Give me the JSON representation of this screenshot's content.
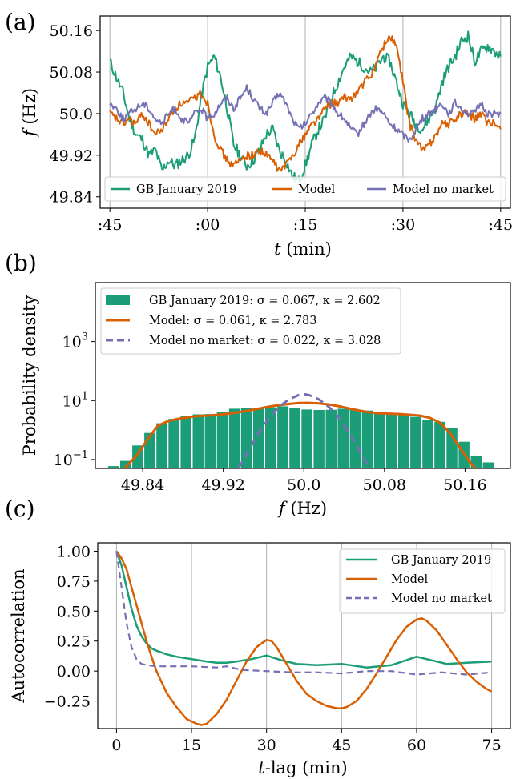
{
  "colors": {
    "gb": "#1b9e77",
    "model": "#d95f02",
    "no_market": "#7570b3",
    "grid": "#b0b0b0"
  },
  "chart_data": [
    {
      "panel": "(a)",
      "type": "line",
      "xlabel": "t (min)",
      "ylabel": "f (Hz)",
      "x_tick_labels": [
        ":45",
        ":00",
        ":15",
        ":30",
        ":45"
      ],
      "x_tick_values": [
        0,
        15,
        30,
        45,
        60
      ],
      "xlim": [
        -1.5,
        61.5
      ],
      "y_tick_labels": [
        "49.84",
        "49.92",
        "50.0",
        "50.08",
        "50.16"
      ],
      "y_tick_values": [
        49.84,
        49.92,
        50.0,
        50.08,
        50.16
      ],
      "ylim": [
        49.818,
        50.188
      ],
      "grid": "vertical",
      "legend_position": "bottom",
      "series": [
        {
          "name": "GB January 2019",
          "color": "gb",
          "x": [
            0,
            1,
            2,
            3,
            4,
            5,
            6,
            7,
            8,
            9,
            10,
            11,
            12,
            13,
            14,
            15,
            16,
            17,
            18,
            19,
            20,
            21,
            22,
            23,
            24,
            25,
            26,
            27,
            28,
            29,
            30,
            31,
            32,
            33,
            34,
            35,
            36,
            37,
            38,
            39,
            40,
            41,
            42,
            43,
            44,
            45,
            46,
            47,
            48,
            49,
            50,
            51,
            52,
            53,
            54,
            55,
            56,
            57,
            58,
            59,
            60
          ],
          "y": [
            50.1,
            50.07,
            50.04,
            49.99,
            49.96,
            49.95,
            49.92,
            49.93,
            49.89,
            49.91,
            49.9,
            49.91,
            49.92,
            49.95,
            50.03,
            50.09,
            50.11,
            50.07,
            50.01,
            49.94,
            49.92,
            49.9,
            49.91,
            49.93,
            49.96,
            49.97,
            49.93,
            49.91,
            49.88,
            49.87,
            49.9,
            49.94,
            49.97,
            49.99,
            50.03,
            50.06,
            50.09,
            50.11,
            50.1,
            50.09,
            50.08,
            50.09,
            50.11,
            50.1,
            50.06,
            50.02,
            50.0,
            49.98,
            49.97,
            49.99,
            50.01,
            50.06,
            50.09,
            50.11,
            50.14,
            50.15,
            50.1,
            50.12,
            50.13,
            50.12,
            50.11
          ]
        },
        {
          "name": "Model",
          "color": "model",
          "x": [
            0,
            1,
            2,
            3,
            4,
            5,
            6,
            7,
            8,
            9,
            10,
            11,
            12,
            13,
            14,
            15,
            16,
            17,
            18,
            19,
            20,
            21,
            22,
            23,
            24,
            25,
            26,
            27,
            28,
            29,
            30,
            31,
            32,
            33,
            34,
            35,
            36,
            37,
            38,
            39,
            40,
            41,
            42,
            43,
            44,
            45,
            46,
            47,
            48,
            49,
            50,
            51,
            52,
            53,
            54,
            55,
            56,
            57,
            58,
            59,
            60
          ],
          "y": [
            50.0,
            49.99,
            49.98,
            49.99,
            49.98,
            50.0,
            49.98,
            49.96,
            49.97,
            49.99,
            50.01,
            50.02,
            50.02,
            50.03,
            50.04,
            50.02,
            49.96,
            49.93,
            49.91,
            49.9,
            49.91,
            49.92,
            49.92,
            49.93,
            49.92,
            49.91,
            49.89,
            49.9,
            49.92,
            49.94,
            49.96,
            49.98,
            49.99,
            50.01,
            50.02,
            50.02,
            50.03,
            50.03,
            50.04,
            50.06,
            50.07,
            50.1,
            50.13,
            50.15,
            50.13,
            50.06,
            49.98,
            49.95,
            49.93,
            49.94,
            49.96,
            49.98,
            49.98,
            49.99,
            50.0,
            50.0,
            49.99,
            50.0,
            49.98,
            49.98,
            49.97
          ]
        },
        {
          "name": "Model no market",
          "color": "no_market",
          "x": [
            0,
            1,
            2,
            3,
            4,
            5,
            6,
            7,
            8,
            9,
            10,
            11,
            12,
            13,
            14,
            15,
            16,
            17,
            18,
            19,
            20,
            21,
            22,
            23,
            24,
            25,
            26,
            27,
            28,
            29,
            30,
            31,
            32,
            33,
            34,
            35,
            36,
            37,
            38,
            39,
            40,
            41,
            42,
            43,
            44,
            45,
            46,
            47,
            48,
            49,
            50,
            51,
            52,
            53,
            54,
            55,
            56,
            57,
            58,
            59,
            60
          ],
          "y": [
            50.02,
            50.01,
            49.99,
            50.0,
            50.01,
            50.02,
            50.01,
            49.99,
            49.98,
            50.0,
            50.01,
            49.99,
            49.98,
            50.0,
            50.01,
            49.99,
            50.0,
            50.02,
            50.03,
            50.01,
            50.03,
            50.05,
            50.03,
            50.01,
            50.0,
            50.02,
            50.04,
            50.02,
            49.99,
            49.97,
            49.98,
            50.0,
            50.02,
            50.03,
            50.02,
            50.0,
            49.99,
            49.97,
            49.96,
            49.98,
            50.0,
            50.01,
            50.0,
            49.98,
            49.97,
            49.96,
            49.95,
            49.97,
            49.99,
            50.0,
            50.01,
            50.02,
            50.0,
            50.02,
            50.01,
            50.0,
            50.0,
            50.02,
            50.0,
            50.0,
            50.0
          ]
        }
      ]
    },
    {
      "panel": "(b)",
      "type": "bar",
      "xlabel": "f (Hz)",
      "ylabel": "Probability density",
      "x_tick_labels": [
        "49.84",
        "49.92",
        "50.0",
        "50.08",
        "50.16"
      ],
      "x_tick_values": [
        49.84,
        49.92,
        50.0,
        50.08,
        50.16
      ],
      "xlim": [
        49.793,
        50.205
      ],
      "y_scale": "log",
      "y_tick_labels": [
        "10",
        "10",
        "10"
      ],
      "y_tick_exponents": [
        "−1",
        "1",
        "3"
      ],
      "y_tick_values": [
        0.1,
        10,
        1000
      ],
      "ylim": [
        0.05,
        100000
      ],
      "legend_position": "top-left",
      "histogram": {
        "name": "GB January 2019: σ = 0.067, κ = 2.602",
        "color": "gb",
        "bin_edges": [
          49.805,
          49.817,
          49.829,
          49.841,
          49.853,
          49.865,
          49.877,
          49.889,
          49.901,
          49.913,
          49.925,
          49.937,
          49.949,
          49.961,
          49.973,
          49.985,
          49.997,
          50.009,
          50.021,
          50.033,
          50.045,
          50.057,
          50.069,
          50.081,
          50.093,
          50.105,
          50.117,
          50.129,
          50.141,
          50.153,
          50.165,
          50.177,
          50.189
        ],
        "values": [
          0.06,
          0.09,
          0.3,
          0.8,
          1.7,
          2.4,
          3.0,
          3.4,
          3.5,
          4.0,
          5.3,
          5.6,
          5.6,
          5.9,
          6.4,
          5.7,
          5.0,
          4.8,
          4.9,
          5.3,
          5.0,
          4.6,
          4.1,
          3.5,
          3.3,
          2.8,
          2.2,
          1.9,
          1.2,
          0.4,
          0.13,
          0.08
        ]
      },
      "series": [
        {
          "name": "Model: σ = 0.061, κ = 2.783",
          "color": "model",
          "dash": "solid",
          "x": [
            49.822,
            49.835,
            49.845,
            49.855,
            49.865,
            49.875,
            49.885,
            49.895,
            49.905,
            49.915,
            49.925,
            49.935,
            49.945,
            49.955,
            49.965,
            49.975,
            49.985,
            49.995,
            50.005,
            50.015,
            50.025,
            50.035,
            50.045,
            50.055,
            50.065,
            50.075,
            50.085,
            50.095,
            50.105,
            50.115,
            50.125,
            50.135,
            50.145,
            50.155,
            50.165,
            50.17
          ],
          "y": [
            0.05,
            0.15,
            0.5,
            1.4,
            2.0,
            2.4,
            2.7,
            3.0,
            3.1,
            3.3,
            3.6,
            4.0,
            4.6,
            5.3,
            6.2,
            7.0,
            7.7,
            8.3,
            8.4,
            8.0,
            7.4,
            6.4,
            5.4,
            4.6,
            4.0,
            3.7,
            3.6,
            3.5,
            3.3,
            3.1,
            2.6,
            1.8,
            0.8,
            0.25,
            0.08,
            0.05
          ]
        },
        {
          "name": "Model no market: σ = 0.022, κ = 3.028",
          "color": "no_market",
          "dash": "dashed",
          "x": [
            49.935,
            49.945,
            49.955,
            49.965,
            49.975,
            49.985,
            49.995,
            50.0,
            50.005,
            50.015,
            50.025,
            50.035,
            50.045,
            50.055,
            50.065
          ],
          "y": [
            0.05,
            0.2,
            0.8,
            2.5,
            6.0,
            11.0,
            15.5,
            16.5,
            15.5,
            11.0,
            6.0,
            2.5,
            0.8,
            0.2,
            0.05
          ]
        }
      ]
    },
    {
      "panel": "(c)",
      "type": "line",
      "xlabel": "t-lag (min)",
      "ylabel": "Autocorrelation",
      "x_tick_labels": [
        "0",
        "15",
        "30",
        "45",
        "60",
        "75"
      ],
      "x_tick_values": [
        0,
        15,
        30,
        45,
        60,
        75
      ],
      "xlim": [
        -3.75,
        78.75
      ],
      "y_tick_labels": [
        "−0.25",
        "0.00",
        "0.25",
        "0.50",
        "0.75",
        "1.00"
      ],
      "y_tick_values": [
        -0.25,
        0.0,
        0.25,
        0.5,
        0.75,
        1.0
      ],
      "ylim": [
        -0.48,
        1.07
      ],
      "grid": "vertical",
      "legend_position": "top-right",
      "series": [
        {
          "name": "GB January 2019",
          "color": "gb",
          "dash": "solid",
          "x": [
            0,
            1,
            2,
            3,
            4,
            5,
            6,
            7,
            8,
            10,
            12,
            15,
            18,
            20,
            22,
            24,
            27,
            30,
            33,
            36,
            40,
            45,
            50,
            55,
            60,
            63,
            66,
            70,
            75
          ],
          "y": [
            1.0,
            0.88,
            0.7,
            0.52,
            0.38,
            0.29,
            0.23,
            0.19,
            0.17,
            0.14,
            0.12,
            0.1,
            0.08,
            0.07,
            0.07,
            0.08,
            0.1,
            0.13,
            0.09,
            0.06,
            0.05,
            0.06,
            0.03,
            0.05,
            0.12,
            0.09,
            0.06,
            0.07,
            0.08
          ]
        },
        {
          "name": "Model",
          "color": "model",
          "dash": "solid",
          "x": [
            0,
            1,
            2,
            3,
            4,
            5,
            6,
            7,
            8,
            10,
            12,
            14,
            16,
            17,
            18,
            20,
            22,
            24,
            26,
            28,
            30,
            31,
            32,
            34,
            36,
            38,
            40,
            42,
            44,
            45,
            46,
            48,
            50,
            52,
            54,
            56,
            58,
            60,
            61,
            62,
            64,
            66,
            68,
            70,
            72,
            74,
            75
          ],
          "y": [
            1.0,
            0.94,
            0.85,
            0.7,
            0.55,
            0.4,
            0.25,
            0.12,
            0.0,
            -0.18,
            -0.3,
            -0.4,
            -0.44,
            -0.45,
            -0.44,
            -0.36,
            -0.24,
            -0.08,
            0.08,
            0.2,
            0.26,
            0.25,
            0.2,
            0.06,
            -0.08,
            -0.19,
            -0.25,
            -0.29,
            -0.31,
            -0.31,
            -0.3,
            -0.25,
            -0.15,
            -0.02,
            0.12,
            0.26,
            0.37,
            0.43,
            0.44,
            0.42,
            0.34,
            0.22,
            0.1,
            -0.01,
            -0.09,
            -0.15,
            -0.17
          ]
        },
        {
          "name": "Model no market",
          "color": "no_market",
          "dash": "dashed",
          "x": [
            0,
            1,
            2,
            3,
            4,
            5,
            6,
            8,
            10,
            15,
            20,
            22,
            25,
            30,
            35,
            40,
            45,
            50,
            55,
            60,
            65,
            70,
            75
          ],
          "y": [
            1.0,
            0.7,
            0.4,
            0.2,
            0.1,
            0.06,
            0.05,
            0.04,
            0.04,
            0.04,
            0.03,
            0.04,
            0.01,
            0.0,
            -0.01,
            -0.01,
            -0.02,
            0.0,
            0.0,
            -0.03,
            -0.01,
            -0.03,
            -0.01
          ]
        }
      ]
    }
  ]
}
